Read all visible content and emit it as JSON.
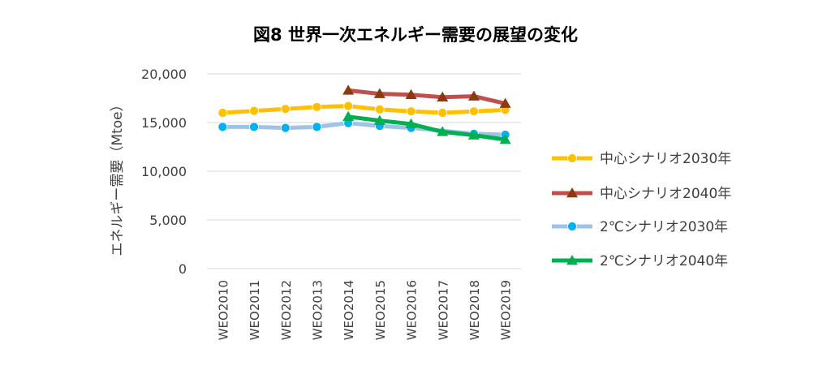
{
  "chart_data": {
    "type": "line",
    "title": "図8 世界一次エネルギー需要の展望の変化",
    "ylabel": "エネルギー需要（Mtoe）",
    "xlabel": "",
    "categories": [
      "WEO2010",
      "WEO2011",
      "WEO2012",
      "WEO2013",
      "WEO2014",
      "WEO2015",
      "WEO2016",
      "WEO2017",
      "WEO2018",
      "WEO2019"
    ],
    "ylim": [
      0,
      20000
    ],
    "yticks": [
      "0",
      "5,000",
      "10,000",
      "15,000",
      "20,000"
    ],
    "grid": true,
    "legend_position": "right",
    "series": [
      {
        "name": "中心シナリオ2030年",
        "color": "#FFC000",
        "marker": "circle",
        "values": [
          16000,
          16200,
          16400,
          16600,
          16700,
          16350,
          16150,
          16000,
          16150,
          16300
        ]
      },
      {
        "name": "中心シナリオ2040年",
        "color": "#C0504D",
        "marker": "triangle",
        "markerColor": "#8B3A0F",
        "values": [
          null,
          null,
          null,
          null,
          18300,
          17950,
          17850,
          17600,
          17700,
          16950
        ]
      },
      {
        "name": "2℃シナリオ2030年",
        "color": "#9DC3E6",
        "marker": "circle",
        "markerColor": "#00B0F0",
        "values": [
          14550,
          14550,
          14450,
          14550,
          14950,
          14650,
          14450,
          null,
          13850,
          13750
        ]
      },
      {
        "name": "2℃シナリオ2040年",
        "color": "#00B050",
        "marker": "triangle",
        "values": [
          null,
          null,
          null,
          null,
          15600,
          15200,
          14850,
          14050,
          13700,
          13250
        ]
      }
    ]
  }
}
